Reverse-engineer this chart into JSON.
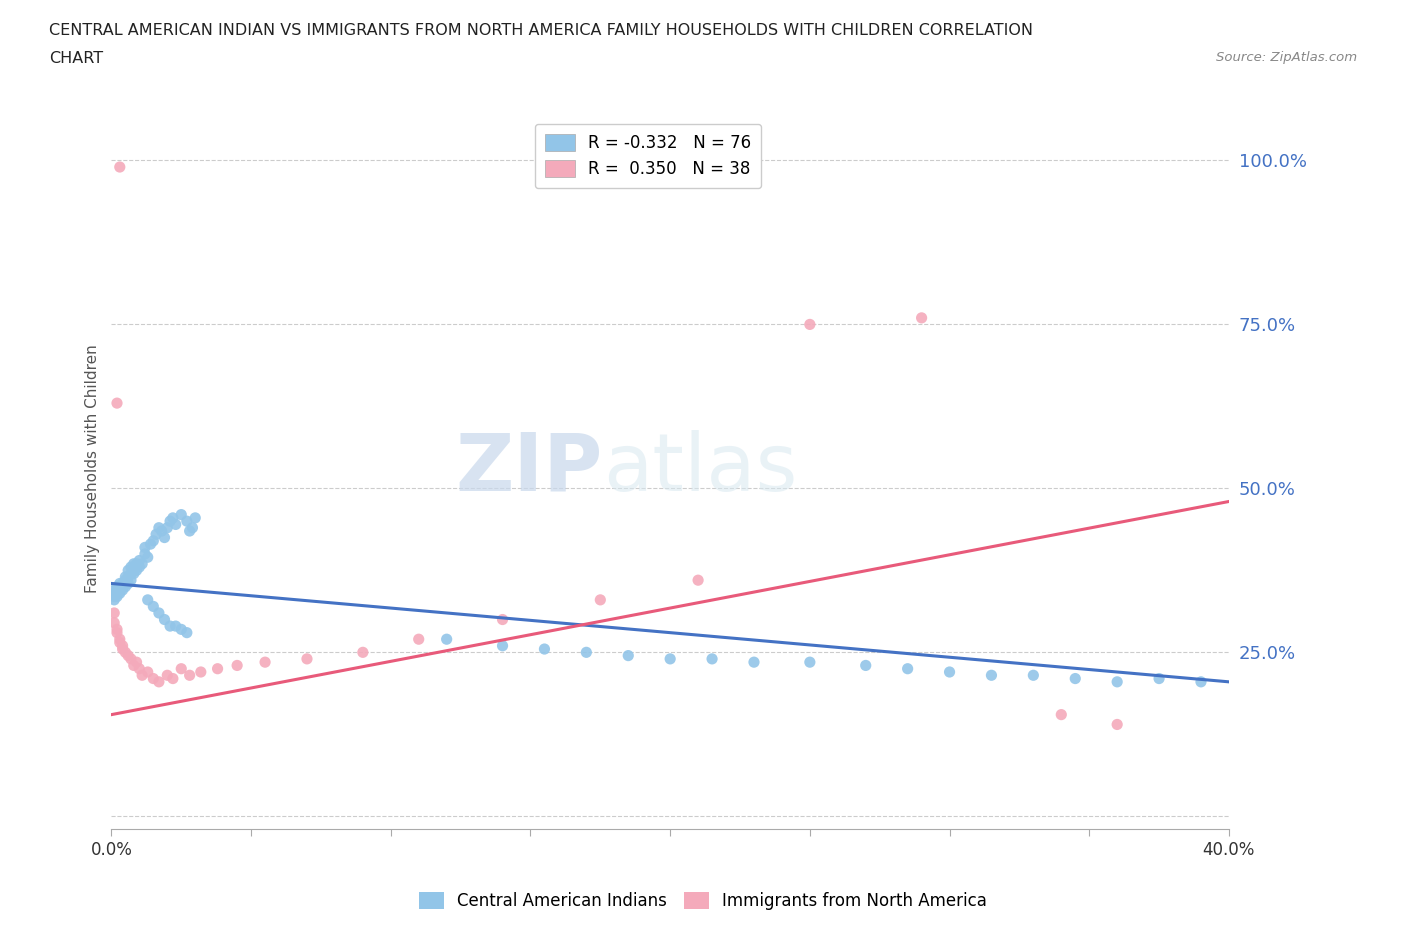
{
  "title_line1": "CENTRAL AMERICAN INDIAN VS IMMIGRANTS FROM NORTH AMERICA FAMILY HOUSEHOLDS WITH CHILDREN CORRELATION",
  "title_line2": "CHART",
  "source": "Source: ZipAtlas.com",
  "ylabel": "Family Households with Children",
  "xlim": [
    0.0,
    0.4
  ],
  "ylim": [
    -0.02,
    1.08
  ],
  "yticks": [
    0.0,
    0.25,
    0.5,
    0.75,
    1.0
  ],
  "ytick_labels": [
    "",
    "25.0%",
    "50.0%",
    "75.0%",
    "100.0%"
  ],
  "xticks": [
    0.0,
    0.05,
    0.1,
    0.15,
    0.2,
    0.25,
    0.3,
    0.35,
    0.4
  ],
  "xtick_labels": [
    "0.0%",
    "",
    "",
    "",
    "",
    "",
    "",
    "",
    "40.0%"
  ],
  "blue_color": "#92C5E8",
  "pink_color": "#F4AABB",
  "blue_line_color": "#4472C4",
  "pink_line_color": "#E85A7A",
  "legend_r_blue": "-0.332",
  "legend_n_blue": "76",
  "legend_r_pink": "0.350",
  "legend_n_pink": "38",
  "watermark_zip": "ZIP",
  "watermark_atlas": "atlas",
  "blue_scatter_x": [
    0.001,
    0.001,
    0.001,
    0.001,
    0.002,
    0.002,
    0.002,
    0.002,
    0.003,
    0.003,
    0.003,
    0.003,
    0.004,
    0.004,
    0.004,
    0.005,
    0.005,
    0.005,
    0.006,
    0.006,
    0.006,
    0.007,
    0.007,
    0.007,
    0.008,
    0.008,
    0.008,
    0.009,
    0.009,
    0.01,
    0.01,
    0.011,
    0.012,
    0.012,
    0.013,
    0.014,
    0.015,
    0.016,
    0.017,
    0.018,
    0.019,
    0.02,
    0.021,
    0.022,
    0.023,
    0.025,
    0.027,
    0.028,
    0.029,
    0.03,
    0.12,
    0.14,
    0.155,
    0.17,
    0.185,
    0.2,
    0.215,
    0.23,
    0.25,
    0.27,
    0.285,
    0.3,
    0.315,
    0.33,
    0.345,
    0.36,
    0.375,
    0.39,
    0.013,
    0.015,
    0.017,
    0.019,
    0.021,
    0.023,
    0.025,
    0.027
  ],
  "blue_scatter_y": [
    0.33,
    0.335,
    0.34,
    0.345,
    0.335,
    0.34,
    0.345,
    0.35,
    0.34,
    0.345,
    0.35,
    0.355,
    0.345,
    0.35,
    0.355,
    0.35,
    0.36,
    0.365,
    0.355,
    0.365,
    0.375,
    0.36,
    0.37,
    0.38,
    0.37,
    0.375,
    0.385,
    0.375,
    0.385,
    0.38,
    0.39,
    0.385,
    0.4,
    0.41,
    0.395,
    0.415,
    0.42,
    0.43,
    0.44,
    0.435,
    0.425,
    0.44,
    0.45,
    0.455,
    0.445,
    0.46,
    0.45,
    0.435,
    0.44,
    0.455,
    0.27,
    0.26,
    0.255,
    0.25,
    0.245,
    0.24,
    0.24,
    0.235,
    0.235,
    0.23,
    0.225,
    0.22,
    0.215,
    0.215,
    0.21,
    0.205,
    0.21,
    0.205,
    0.33,
    0.32,
    0.31,
    0.3,
    0.29,
    0.29,
    0.285,
    0.28
  ],
  "pink_scatter_x": [
    0.001,
    0.001,
    0.002,
    0.002,
    0.003,
    0.003,
    0.004,
    0.004,
    0.005,
    0.006,
    0.007,
    0.008,
    0.009,
    0.01,
    0.011,
    0.013,
    0.015,
    0.017,
    0.02,
    0.022,
    0.025,
    0.028,
    0.032,
    0.038,
    0.045,
    0.055,
    0.07,
    0.09,
    0.11,
    0.14,
    0.175,
    0.21,
    0.25,
    0.29,
    0.34,
    0.36,
    0.002,
    0.003
  ],
  "pink_scatter_y": [
    0.31,
    0.295,
    0.28,
    0.285,
    0.27,
    0.265,
    0.255,
    0.26,
    0.25,
    0.245,
    0.24,
    0.23,
    0.235,
    0.225,
    0.215,
    0.22,
    0.21,
    0.205,
    0.215,
    0.21,
    0.225,
    0.215,
    0.22,
    0.225,
    0.23,
    0.235,
    0.24,
    0.25,
    0.27,
    0.3,
    0.33,
    0.36,
    0.75,
    0.76,
    0.155,
    0.14,
    0.63,
    0.99
  ],
  "blue_trend_x": [
    0.0,
    0.4
  ],
  "blue_trend_y": [
    0.355,
    0.205
  ],
  "pink_trend_x": [
    0.0,
    0.4
  ],
  "pink_trend_y": [
    0.155,
    0.48
  ],
  "grid_color": "#CCCCCC",
  "background_color": "#FFFFFF"
}
